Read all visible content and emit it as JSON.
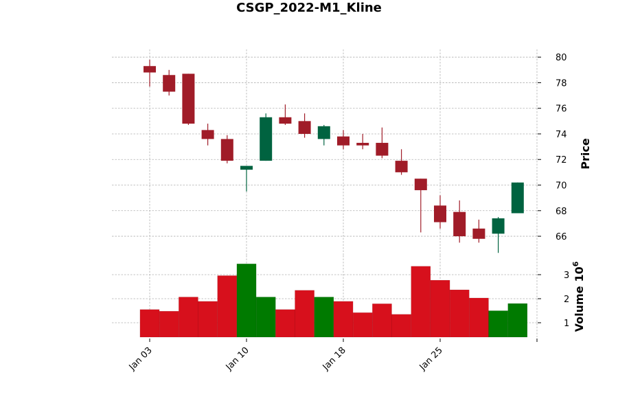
{
  "chart_data": {
    "type": "candlestick",
    "title": "CSGP_2022-M1_Kline",
    "price_label": "Price",
    "volume_label": "Volume",
    "volume_multiplier_label": "10",
    "volume_multiplier_exp": "6",
    "price_ylim": [
      64.5,
      80.6
    ],
    "volume_ylim": [
      0.4,
      3.8
    ],
    "price_ticks": [
      66,
      68,
      70,
      72,
      74,
      76,
      78,
      80
    ],
    "price_tick_labels": [
      "66",
      "68",
      "70",
      "72",
      "74",
      "76",
      "78",
      "80"
    ],
    "volume_ticks": [
      1,
      2,
      3
    ],
    "volume_tick_labels": [
      "1",
      "2",
      "3"
    ],
    "x_ticks": [
      {
        "index": 0,
        "label": "Jan 03"
      },
      {
        "index": 5,
        "label": "Jan 10"
      },
      {
        "index": 10,
        "label": "Jan 18"
      },
      {
        "index": 15,
        "label": "Jan 25"
      },
      {
        "index": 20,
        "label": ""
      }
    ],
    "colors": {
      "up": "#006340",
      "down": "#a01c28",
      "volume_up": "#007a00",
      "volume_down": "#d7101c"
    },
    "candles": [
      {
        "date": "2022-01-03",
        "open": 79.3,
        "high": 79.8,
        "low": 77.7,
        "close": 78.8,
        "volume": 1.55
      },
      {
        "date": "2022-01-04",
        "open": 78.6,
        "high": 79.0,
        "low": 77.0,
        "close": 77.3,
        "volume": 1.48
      },
      {
        "date": "2022-01-05",
        "open": 78.7,
        "high": 78.7,
        "low": 74.7,
        "close": 74.8,
        "volume": 2.07
      },
      {
        "date": "2022-01-06",
        "open": 74.3,
        "high": 74.8,
        "low": 73.1,
        "close": 73.6,
        "volume": 1.89
      },
      {
        "date": "2022-01-07",
        "open": 73.6,
        "high": 73.9,
        "low": 71.7,
        "close": 71.9,
        "volume": 2.96
      },
      {
        "date": "2022-01-10",
        "open": 71.2,
        "high": 71.5,
        "low": 69.5,
        "close": 71.5,
        "volume": 3.45
      },
      {
        "date": "2022-01-11",
        "open": 71.9,
        "high": 75.6,
        "low": 71.9,
        "close": 75.3,
        "volume": 2.07
      },
      {
        "date": "2022-01-12",
        "open": 75.3,
        "high": 76.3,
        "low": 74.7,
        "close": 74.8,
        "volume": 1.55
      },
      {
        "date": "2022-01-13",
        "open": 75.0,
        "high": 75.6,
        "low": 73.7,
        "close": 74.0,
        "volume": 2.35
      },
      {
        "date": "2022-01-14",
        "open": 73.6,
        "high": 74.7,
        "low": 73.1,
        "close": 74.6,
        "volume": 2.07
      },
      {
        "date": "2022-01-18",
        "open": 73.8,
        "high": 74.3,
        "low": 72.8,
        "close": 73.1,
        "volume": 1.89
      },
      {
        "date": "2022-01-19",
        "open": 73.3,
        "high": 74.0,
        "low": 72.8,
        "close": 73.1,
        "volume": 1.42
      },
      {
        "date": "2022-01-20",
        "open": 73.3,
        "high": 74.5,
        "low": 72.1,
        "close": 72.3,
        "volume": 1.79
      },
      {
        "date": "2022-01-21",
        "open": 71.9,
        "high": 72.8,
        "low": 70.8,
        "close": 71.0,
        "volume": 1.35
      },
      {
        "date": "2022-01-24",
        "open": 70.5,
        "high": 70.5,
        "low": 66.3,
        "close": 69.6,
        "volume": 3.35
      },
      {
        "date": "2022-01-25",
        "open": 68.4,
        "high": 69.2,
        "low": 66.6,
        "close": 67.1,
        "volume": 2.77
      },
      {
        "date": "2022-01-26",
        "open": 67.9,
        "high": 68.8,
        "low": 65.5,
        "close": 66.0,
        "volume": 2.37
      },
      {
        "date": "2022-01-27",
        "open": 66.6,
        "high": 67.3,
        "low": 65.5,
        "close": 65.8,
        "volume": 2.03
      },
      {
        "date": "2022-01-28",
        "open": 66.2,
        "high": 67.5,
        "low": 64.7,
        "close": 67.4,
        "volume": 1.5
      },
      {
        "date": "2022-01-31",
        "open": 67.8,
        "high": 70.2,
        "low": 67.8,
        "close": 70.2,
        "volume": 1.8
      }
    ]
  }
}
